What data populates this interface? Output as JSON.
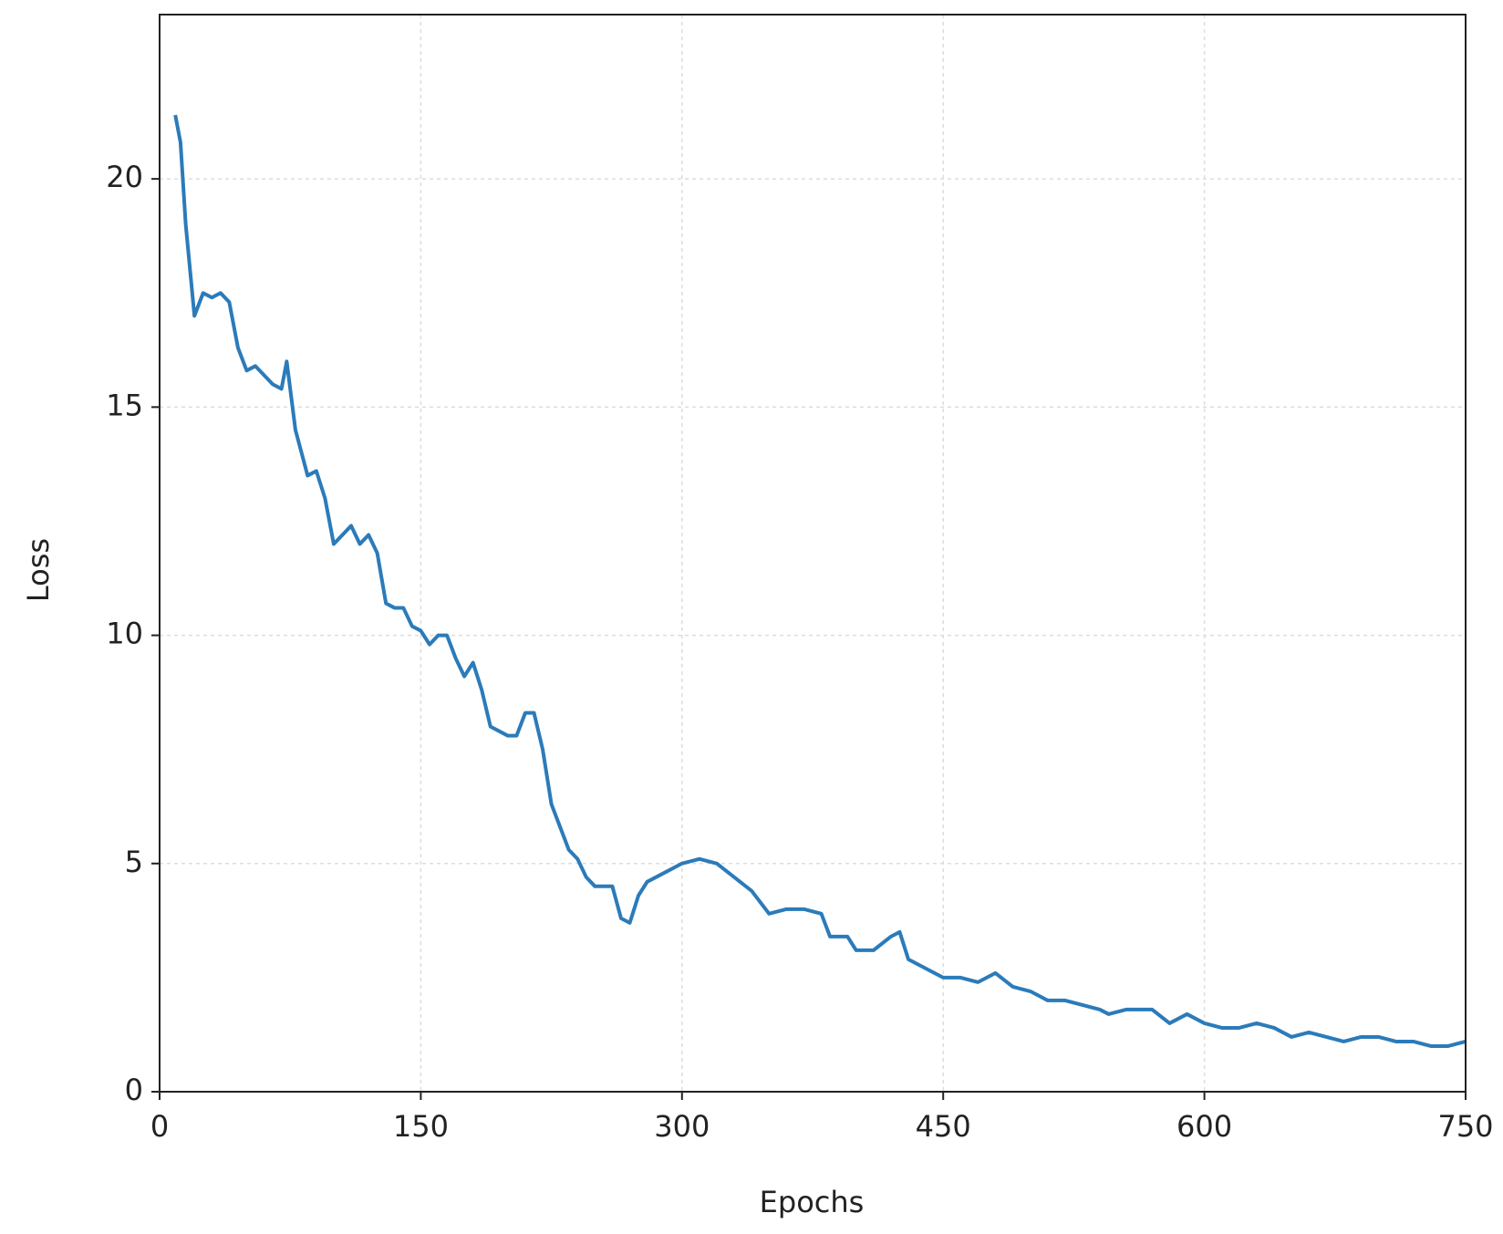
{
  "chart_data": {
    "type": "line",
    "x_label": "Epochs",
    "y_label": "Loss",
    "x": [
      9,
      12,
      15,
      18,
      20,
      25,
      30,
      35,
      40,
      45,
      50,
      55,
      60,
      65,
      70,
      73,
      78,
      85,
      90,
      95,
      100,
      105,
      110,
      115,
      120,
      125,
      130,
      135,
      140,
      145,
      150,
      155,
      160,
      165,
      170,
      175,
      180,
      185,
      190,
      195,
      200,
      205,
      210,
      215,
      220,
      225,
      230,
      235,
      240,
      245,
      250,
      255,
      260,
      265,
      270,
      275,
      280,
      290,
      300,
      310,
      320,
      330,
      340,
      350,
      360,
      370,
      380,
      385,
      395,
      400,
      410,
      420,
      425,
      430,
      440,
      450,
      460,
      470,
      480,
      490,
      500,
      510,
      520,
      530,
      540,
      545,
      555,
      565,
      570,
      580,
      590,
      600,
      610,
      620,
      630,
      640,
      650,
      660,
      670,
      680,
      690,
      700,
      710,
      720,
      730,
      740,
      750
    ],
    "values": [
      21.4,
      20.8,
      19,
      17.8,
      17,
      17.5,
      17.4,
      17.5,
      17.3,
      16.3,
      15.8,
      15.9,
      15.7,
      15.5,
      15.4,
      16,
      14.5,
      13.5,
      13.6,
      13,
      12,
      12.2,
      12.4,
      12,
      12.2,
      11.8,
      10.7,
      10.6,
      10.6,
      10.2,
      10.1,
      9.8,
      10,
      10,
      9.5,
      9.1,
      9.4,
      8.8,
      8,
      7.9,
      7.8,
      7.8,
      8.3,
      8.3,
      7.5,
      6.3,
      5.8,
      5.3,
      5.1,
      4.7,
      4.5,
      4.5,
      4.5,
      3.8,
      3.7,
      4.3,
      4.6,
      4.8,
      5,
      5.1,
      5,
      4.7,
      4.4,
      3.9,
      4,
      4,
      3.9,
      3.4,
      3.4,
      3.1,
      3.1,
      3.4,
      3.5,
      2.9,
      2.7,
      2.5,
      2.5,
      2.4,
      2.6,
      2.3,
      2.2,
      2,
      2,
      1.9,
      1.8,
      1.7,
      1.8,
      1.8,
      1.8,
      1.5,
      1.7,
      1.5,
      1.4,
      1.4,
      1.5,
      1.4,
      1.2,
      1.3,
      1.2,
      1.1,
      1.2,
      1.2,
      1.1,
      1.1,
      1,
      1,
      1.1
    ],
    "color": "#2b7bba",
    "xlim": [
      0,
      750
    ],
    "xticks": [
      0,
      150,
      300,
      450,
      600,
      750
    ],
    "ylim": [
      0,
      23.6
    ],
    "yticks": [
      0,
      5,
      10,
      15,
      20
    ],
    "grid": true
  }
}
